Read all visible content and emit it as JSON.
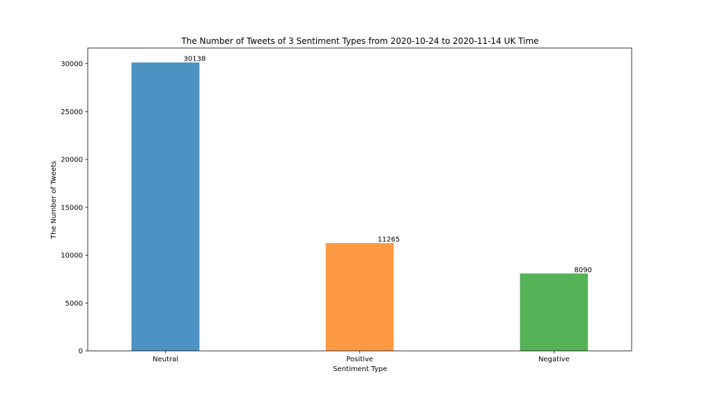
{
  "chart_data": {
    "type": "bar",
    "title": "The Number of Tweets of 3 Sentiment Types from 2020-10-24 to 2020-11-14 UK Time",
    "xlabel": "Sentiment Type",
    "ylabel": "The Number of Tweets",
    "categories": [
      "Neutral",
      "Positive",
      "Negative"
    ],
    "values": [
      30138,
      11265,
      8090
    ],
    "value_labels": [
      "30138",
      "11265",
      "8090"
    ],
    "colors": [
      "#4c93c3",
      "#fe9a42",
      "#56b257"
    ],
    "ylim": [
      0,
      31644.9
    ],
    "yticks": [
      0,
      5000,
      10000,
      15000,
      20000,
      25000,
      30000
    ],
    "ytick_labels": [
      "0",
      "5000",
      "10000",
      "15000",
      "20000",
      "25000",
      "30000"
    ],
    "grid": false,
    "legend": false
  }
}
